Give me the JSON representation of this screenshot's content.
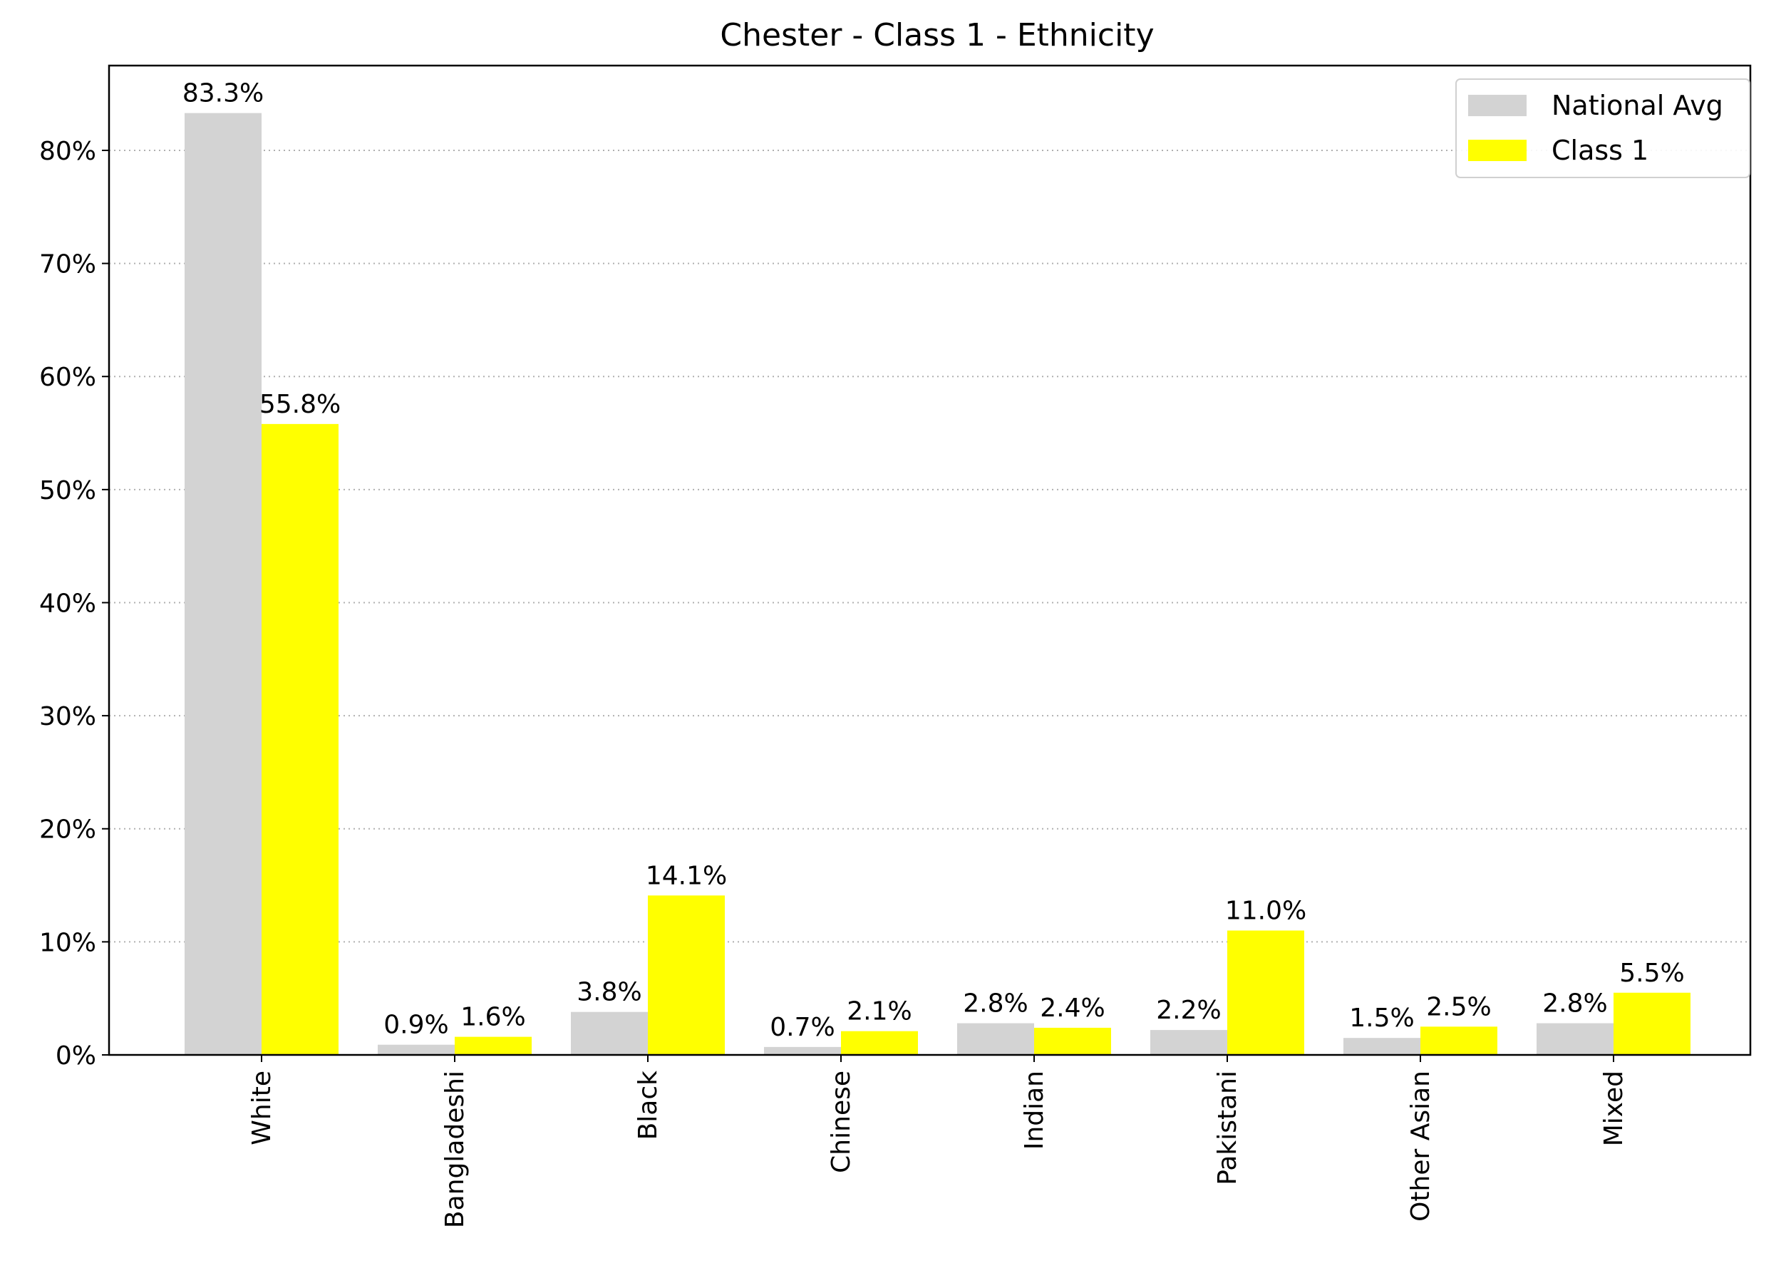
{
  "chart_data": {
    "type": "bar",
    "title": "Chester - Class 1 - Ethnicity",
    "xlabel": "",
    "ylabel": "",
    "categories": [
      "White",
      "Bangladeshi",
      "Black",
      "Chinese",
      "Indian",
      "Pakistani",
      "Other Asian",
      "Mixed"
    ],
    "series": [
      {
        "name": "National Avg",
        "color": "#d3d3d3",
        "values": [
          83.3,
          0.9,
          3.8,
          0.7,
          2.8,
          2.2,
          1.5,
          2.8
        ],
        "labels": [
          "83.3%",
          "0.9%",
          "3.8%",
          "0.7%",
          "2.8%",
          "2.2%",
          "1.5%",
          "2.8%"
        ]
      },
      {
        "name": "Class 1",
        "color": "#ffff00",
        "values": [
          55.8,
          1.6,
          14.1,
          2.1,
          2.4,
          11.0,
          2.5,
          5.5
        ],
        "labels": [
          "55.8%",
          "1.6%",
          "14.1%",
          "2.1%",
          "2.4%",
          "11.0%",
          "2.5%",
          "5.5%"
        ]
      }
    ],
    "ylim": [
      0,
      87.5
    ],
    "yticks": [
      0,
      10,
      20,
      30,
      40,
      50,
      60,
      70,
      80
    ],
    "ytick_labels": [
      "0%",
      "10%",
      "20%",
      "30%",
      "40%",
      "50%",
      "60%",
      "70%",
      "80%"
    ],
    "grid": "horizontal dotted",
    "legend_position": "top-right"
  }
}
